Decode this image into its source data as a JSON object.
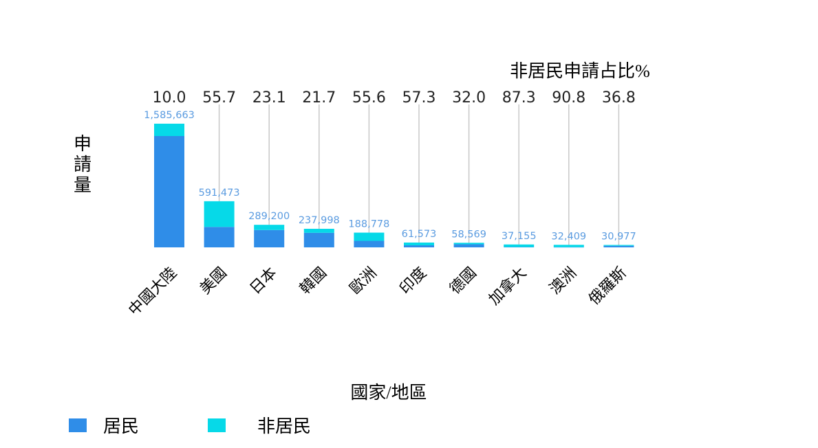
{
  "chart_data": {
    "type": "bar",
    "stacked": true,
    "categories": [
      "中國大陸",
      "美國",
      "日本",
      "韓國",
      "歐洲",
      "印度",
      "德國",
      "加拿大",
      "澳洲",
      "俄羅斯"
    ],
    "totals": [
      "1,585,663",
      "591,473",
      "289,200",
      "237,998",
      "188,778",
      "61,573",
      "58,569",
      "37,155",
      "32,409",
      "30,977"
    ],
    "series": [
      {
        "name": "居民",
        "color": "#2f8de8",
        "values": [
          1427097,
          262013,
          222353,
          186354,
          83816,
          26292,
          39828,
          4719,
          2981,
          19578
        ]
      },
      {
        "name": "非居民",
        "color": "#06d9e8",
        "values": [
          158566,
          329460,
          66847,
          51644,
          104962,
          35281,
          18741,
          32436,
          29428,
          11399
        ]
      }
    ],
    "nonresident_share": {
      "title": "非居民申請占比%",
      "values": [
        "10.0",
        "55.7",
        "23.1",
        "21.7",
        "55.6",
        "57.3",
        "32.0",
        "87.3",
        "90.8",
        "36.8"
      ]
    },
    "xlabel": "國家/地區",
    "ylabel": "申請量",
    "legend_position": "bottom-left",
    "grid": false
  }
}
